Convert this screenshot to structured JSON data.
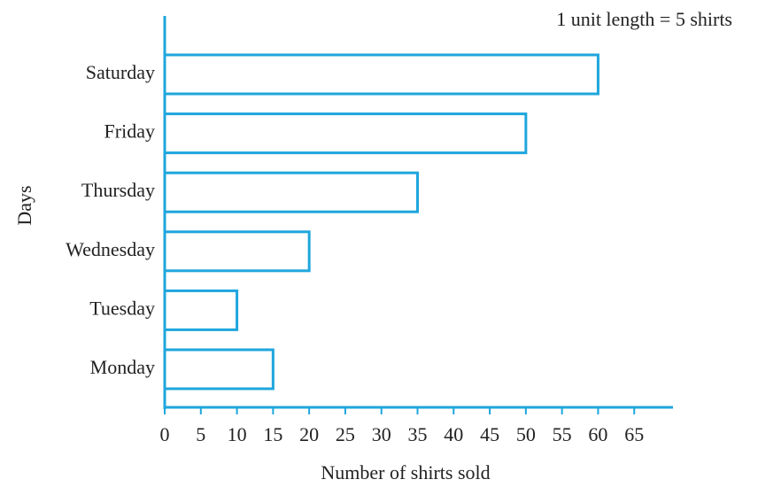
{
  "chart_data": {
    "type": "bar",
    "orientation": "horizontal",
    "annotation": "1 unit length = 5 shirts",
    "categories": [
      "Monday",
      "Tuesday",
      "Wednesday",
      "Thursday",
      "Friday",
      "Saturday"
    ],
    "values": [
      15,
      10,
      20,
      35,
      50,
      60
    ],
    "color": "#1fa6dd",
    "xlim": [
      0,
      70
    ],
    "xticks": [
      0,
      5,
      10,
      15,
      20,
      25,
      30,
      35,
      40,
      45,
      50,
      55,
      60,
      65
    ],
    "xlabel": "Number of shirts sold",
    "ylabel": "Days"
  }
}
